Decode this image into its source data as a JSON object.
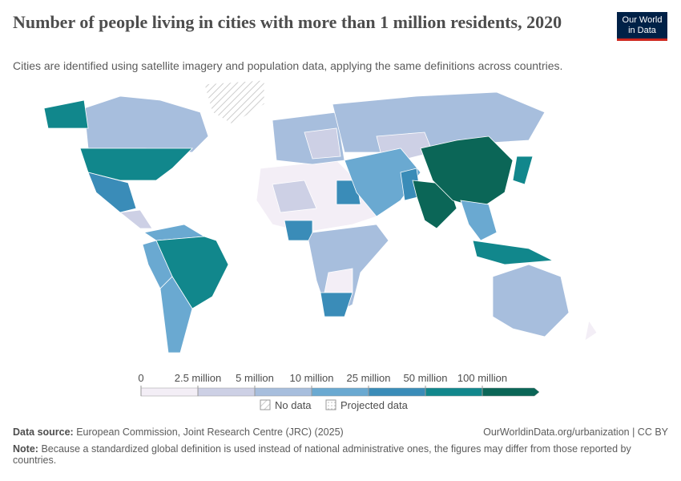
{
  "header": {
    "title": "Number of people living in cities with more than 1 million residents, 2020",
    "subtitle": "Cities are identified using satellite imagery and population data, applying the same definitions across countries.",
    "logo": [
      "Our World",
      "in Data"
    ]
  },
  "legend": {
    "labels": [
      "0",
      "2.5 million",
      "5 million",
      "10 million",
      "25 million",
      "50 million",
      "100 million"
    ],
    "colors": [
      "#f3eef6",
      "#cdd0e5",
      "#a7bedd",
      "#6aa9d1",
      "#3a8cb8",
      "#11878c",
      "#0b6657"
    ],
    "no_data": "No data",
    "projected": "Projected data"
  },
  "footer": {
    "source": {
      "label": "Data source:",
      "text": "European Commission, Joint Research Centre (JRC) (2025)"
    },
    "url": "OurWorldinData.org/urbanization | CC BY",
    "note": {
      "label": "Note:",
      "text": "Because a standardized global definition is used instead of national administrative ones, the figures may differ from those reported by countries."
    }
  }
}
